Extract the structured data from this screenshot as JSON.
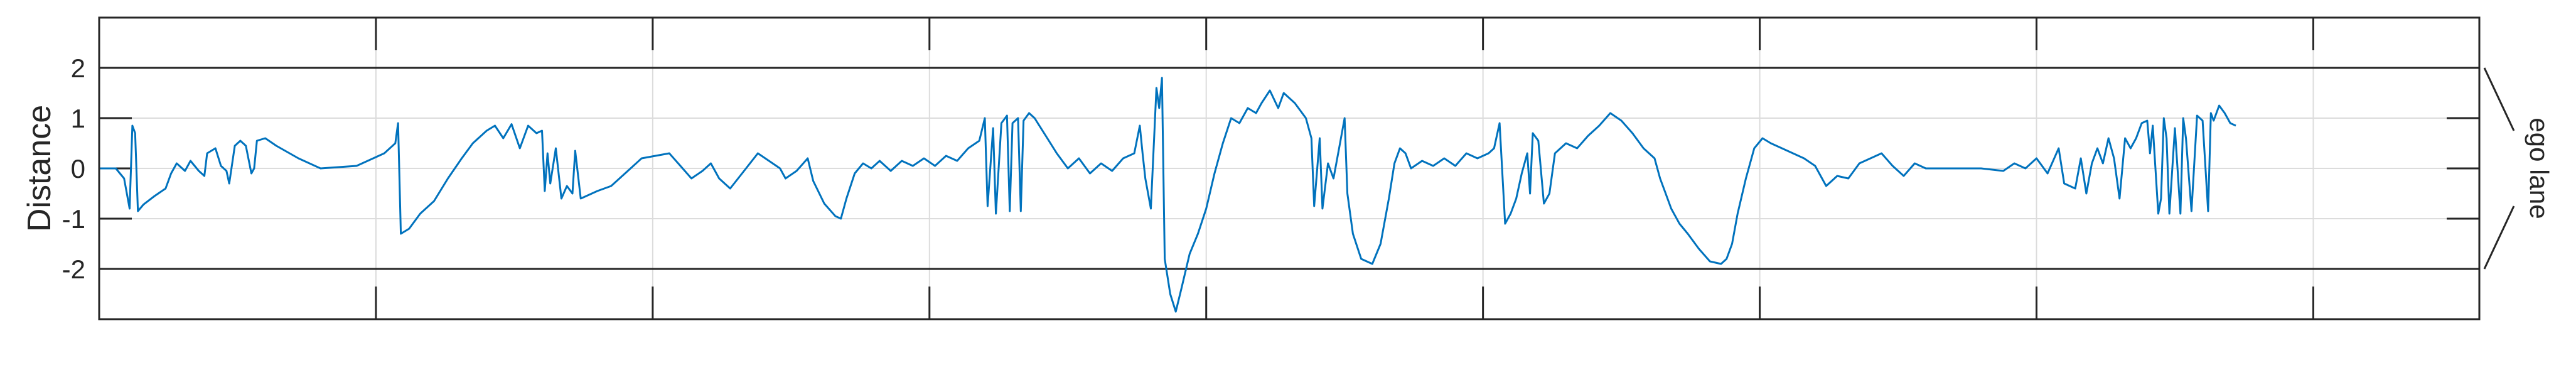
{
  "chart_data": {
    "type": "line",
    "ylabel": "Distance",
    "side_label": "ego lane",
    "ylim": [
      -3,
      3
    ],
    "yticks": [
      2,
      1,
      0,
      -1,
      -2
    ],
    "ytick_labels": [
      "2",
      "1",
      "0",
      "-1",
      "-2"
    ],
    "xlim": [
      0,
      8.6
    ],
    "xgrid": [
      1,
      2,
      3,
      4,
      5,
      6,
      7,
      8
    ],
    "grid": true,
    "band": [
      -2,
      2
    ],
    "colors": {
      "line": "#0072BD",
      "axis": "#262626",
      "grid": "#dcdcdc"
    },
    "series": [
      {
        "values": [
          [
            0.0,
            0.0
          ],
          [
            0.06,
            0.0
          ],
          [
            0.09,
            -0.2
          ],
          [
            0.11,
            -0.8
          ],
          [
            0.12,
            0.85
          ],
          [
            0.13,
            0.7
          ],
          [
            0.14,
            -0.85
          ],
          [
            0.16,
            -0.72
          ],
          [
            0.2,
            -0.55
          ],
          [
            0.24,
            -0.4
          ],
          [
            0.26,
            -0.1
          ],
          [
            0.28,
            0.1
          ],
          [
            0.31,
            -0.05
          ],
          [
            0.33,
            0.15
          ],
          [
            0.36,
            -0.05
          ],
          [
            0.38,
            -0.15
          ],
          [
            0.39,
            0.3
          ],
          [
            0.42,
            0.4
          ],
          [
            0.44,
            0.05
          ],
          [
            0.46,
            -0.05
          ],
          [
            0.47,
            -0.3
          ],
          [
            0.49,
            0.45
          ],
          [
            0.51,
            0.55
          ],
          [
            0.53,
            0.45
          ],
          [
            0.55,
            -0.1
          ],
          [
            0.56,
            0.0
          ],
          [
            0.57,
            0.55
          ],
          [
            0.6,
            0.6
          ],
          [
            0.64,
            0.45
          ],
          [
            0.72,
            0.2
          ],
          [
            0.8,
            0.0
          ],
          [
            0.93,
            0.05
          ],
          [
            1.03,
            0.3
          ],
          [
            1.07,
            0.5
          ],
          [
            1.08,
            0.9
          ],
          [
            1.09,
            -1.3
          ],
          [
            1.12,
            -1.2
          ],
          [
            1.16,
            -0.9
          ],
          [
            1.21,
            -0.65
          ],
          [
            1.26,
            -0.2
          ],
          [
            1.31,
            0.2
          ],
          [
            1.35,
            0.5
          ],
          [
            1.4,
            0.75
          ],
          [
            1.43,
            0.85
          ],
          [
            1.46,
            0.6
          ],
          [
            1.49,
            0.88
          ],
          [
            1.52,
            0.4
          ],
          [
            1.55,
            0.85
          ],
          [
            1.58,
            0.7
          ],
          [
            1.6,
            0.75
          ],
          [
            1.61,
            -0.45
          ],
          [
            1.62,
            0.3
          ],
          [
            1.63,
            -0.3
          ],
          [
            1.65,
            0.4
          ],
          [
            1.67,
            -0.6
          ],
          [
            1.69,
            -0.35
          ],
          [
            1.71,
            -0.5
          ],
          [
            1.72,
            0.35
          ],
          [
            1.74,
            -0.6
          ],
          [
            1.8,
            -0.45
          ],
          [
            1.85,
            -0.35
          ],
          [
            1.9,
            -0.1
          ],
          [
            1.96,
            0.2
          ],
          [
            2.01,
            0.25
          ],
          [
            2.06,
            0.3
          ],
          [
            2.1,
            0.05
          ],
          [
            2.14,
            -0.2
          ],
          [
            2.18,
            -0.05
          ],
          [
            2.21,
            0.1
          ],
          [
            2.24,
            -0.2
          ],
          [
            2.28,
            -0.4
          ],
          [
            2.33,
            -0.05
          ],
          [
            2.38,
            0.3
          ],
          [
            2.42,
            0.15
          ],
          [
            2.46,
            0.0
          ],
          [
            2.48,
            -0.2
          ],
          [
            2.52,
            -0.05
          ],
          [
            2.56,
            0.2
          ],
          [
            2.58,
            -0.25
          ],
          [
            2.62,
            -0.7
          ],
          [
            2.66,
            -0.95
          ],
          [
            2.68,
            -1.0
          ],
          [
            2.7,
            -0.6
          ],
          [
            2.73,
            -0.1
          ],
          [
            2.76,
            0.1
          ],
          [
            2.79,
            0.0
          ],
          [
            2.82,
            0.15
          ],
          [
            2.86,
            -0.05
          ],
          [
            2.9,
            0.15
          ],
          [
            2.94,
            0.05
          ],
          [
            2.98,
            0.2
          ],
          [
            3.02,
            0.05
          ],
          [
            3.06,
            0.25
          ],
          [
            3.1,
            0.15
          ],
          [
            3.14,
            0.4
          ],
          [
            3.18,
            0.55
          ],
          [
            3.2,
            1.0
          ],
          [
            3.21,
            -0.75
          ],
          [
            3.23,
            0.8
          ],
          [
            3.24,
            -0.9
          ],
          [
            3.26,
            0.9
          ],
          [
            3.28,
            1.05
          ],
          [
            3.29,
            -0.85
          ],
          [
            3.3,
            0.9
          ],
          [
            3.32,
            1.0
          ],
          [
            3.33,
            -0.85
          ],
          [
            3.34,
            0.95
          ],
          [
            3.36,
            1.1
          ],
          [
            3.38,
            1.0
          ],
          [
            3.42,
            0.65
          ],
          [
            3.46,
            0.3
          ],
          [
            3.5,
            0.0
          ],
          [
            3.54,
            0.2
          ],
          [
            3.58,
            -0.1
          ],
          [
            3.62,
            0.1
          ],
          [
            3.66,
            -0.05
          ],
          [
            3.7,
            0.2
          ],
          [
            3.74,
            0.3
          ],
          [
            3.76,
            0.85
          ],
          [
            3.77,
            0.3
          ],
          [
            3.78,
            -0.2
          ],
          [
            3.8,
            -0.8
          ],
          [
            3.82,
            1.6
          ],
          [
            3.83,
            1.2
          ],
          [
            3.84,
            1.8
          ],
          [
            3.85,
            -1.8
          ],
          [
            3.87,
            -2.5
          ],
          [
            3.89,
            -2.85
          ],
          [
            3.91,
            -2.4
          ],
          [
            3.94,
            -1.7
          ],
          [
            3.97,
            -1.3
          ],
          [
            4.0,
            -0.8
          ],
          [
            4.03,
            -0.1
          ],
          [
            4.06,
            0.5
          ],
          [
            4.09,
            1.0
          ],
          [
            4.12,
            0.9
          ],
          [
            4.15,
            1.2
          ],
          [
            4.18,
            1.1
          ],
          [
            4.2,
            1.3
          ],
          [
            4.23,
            1.55
          ],
          [
            4.26,
            1.2
          ],
          [
            4.28,
            1.5
          ],
          [
            4.32,
            1.3
          ],
          [
            4.36,
            1.0
          ],
          [
            4.38,
            0.6
          ],
          [
            4.39,
            -0.75
          ],
          [
            4.41,
            0.6
          ],
          [
            4.42,
            -0.8
          ],
          [
            4.44,
            0.1
          ],
          [
            4.46,
            -0.2
          ],
          [
            4.48,
            0.4
          ],
          [
            4.5,
            1.0
          ],
          [
            4.51,
            -0.5
          ],
          [
            4.53,
            -1.3
          ],
          [
            4.56,
            -1.8
          ],
          [
            4.6,
            -1.9
          ],
          [
            4.63,
            -1.5
          ],
          [
            4.66,
            -0.6
          ],
          [
            4.68,
            0.1
          ],
          [
            4.7,
            0.4
          ],
          [
            4.72,
            0.3
          ],
          [
            4.74,
            0.0
          ],
          [
            4.78,
            0.15
          ],
          [
            4.82,
            0.05
          ],
          [
            4.86,
            0.2
          ],
          [
            4.9,
            0.05
          ],
          [
            4.94,
            0.3
          ],
          [
            4.98,
            0.2
          ],
          [
            5.02,
            0.3
          ],
          [
            5.04,
            0.4
          ],
          [
            5.06,
            0.9
          ],
          [
            5.08,
            -1.1
          ],
          [
            5.1,
            -0.9
          ],
          [
            5.12,
            -0.6
          ],
          [
            5.14,
            -0.1
          ],
          [
            5.16,
            0.3
          ],
          [
            5.17,
            -0.5
          ],
          [
            5.18,
            0.7
          ],
          [
            5.2,
            0.55
          ],
          [
            5.22,
            -0.7
          ],
          [
            5.24,
            -0.5
          ],
          [
            5.26,
            0.3
          ],
          [
            5.3,
            0.5
          ],
          [
            5.34,
            0.4
          ],
          [
            5.38,
            0.65
          ],
          [
            5.42,
            0.85
          ],
          [
            5.46,
            1.1
          ],
          [
            5.5,
            0.95
          ],
          [
            5.54,
            0.7
          ],
          [
            5.58,
            0.4
          ],
          [
            5.62,
            0.2
          ],
          [
            5.64,
            -0.2
          ],
          [
            5.66,
            -0.5
          ],
          [
            5.68,
            -0.8
          ],
          [
            5.71,
            -1.1
          ],
          [
            5.74,
            -1.3
          ],
          [
            5.78,
            -1.6
          ],
          [
            5.82,
            -1.85
          ],
          [
            5.86,
            -1.9
          ],
          [
            5.88,
            -1.8
          ],
          [
            5.9,
            -1.5
          ],
          [
            5.92,
            -0.9
          ],
          [
            5.95,
            -0.2
          ],
          [
            5.98,
            0.4
          ],
          [
            6.01,
            0.6
          ],
          [
            6.04,
            0.5
          ],
          [
            6.08,
            0.4
          ],
          [
            6.12,
            0.3
          ],
          [
            6.16,
            0.2
          ],
          [
            6.2,
            0.05
          ],
          [
            6.24,
            -0.35
          ],
          [
            6.28,
            -0.15
          ],
          [
            6.32,
            -0.2
          ],
          [
            6.36,
            0.1
          ],
          [
            6.4,
            0.2
          ],
          [
            6.44,
            0.3
          ],
          [
            6.48,
            0.05
          ],
          [
            6.52,
            -0.15
          ],
          [
            6.56,
            0.1
          ],
          [
            6.6,
            0.0
          ],
          [
            6.7,
            0.0
          ],
          [
            6.8,
            0.0
          ],
          [
            6.88,
            -0.05
          ],
          [
            6.92,
            0.1
          ],
          [
            6.96,
            0.0
          ],
          [
            7.0,
            0.2
          ],
          [
            7.04,
            -0.1
          ],
          [
            7.08,
            0.4
          ],
          [
            7.1,
            -0.3
          ],
          [
            7.14,
            -0.4
          ],
          [
            7.16,
            0.2
          ],
          [
            7.18,
            -0.5
          ],
          [
            7.2,
            0.1
          ],
          [
            7.22,
            0.4
          ],
          [
            7.24,
            0.1
          ],
          [
            7.26,
            0.6
          ],
          [
            7.28,
            0.2
          ],
          [
            7.3,
            -0.6
          ],
          [
            7.32,
            0.6
          ],
          [
            7.34,
            0.4
          ],
          [
            7.36,
            0.6
          ],
          [
            7.38,
            0.9
          ],
          [
            7.4,
            0.95
          ],
          [
            7.41,
            0.3
          ],
          [
            7.42,
            0.85
          ],
          [
            7.44,
            -0.9
          ],
          [
            7.45,
            -0.6
          ],
          [
            7.46,
            1.0
          ],
          [
            7.47,
            0.6
          ],
          [
            7.48,
            -0.9
          ],
          [
            7.5,
            0.8
          ],
          [
            7.52,
            -0.9
          ],
          [
            7.53,
            1.0
          ],
          [
            7.54,
            0.6
          ],
          [
            7.56,
            -0.85
          ],
          [
            7.58,
            1.05
          ],
          [
            7.6,
            0.95
          ],
          [
            7.62,
            -0.85
          ],
          [
            7.63,
            1.1
          ],
          [
            7.64,
            0.95
          ],
          [
            7.66,
            1.25
          ],
          [
            7.68,
            1.1
          ],
          [
            7.7,
            0.9
          ],
          [
            7.72,
            0.85
          ]
        ]
      }
    ]
  }
}
